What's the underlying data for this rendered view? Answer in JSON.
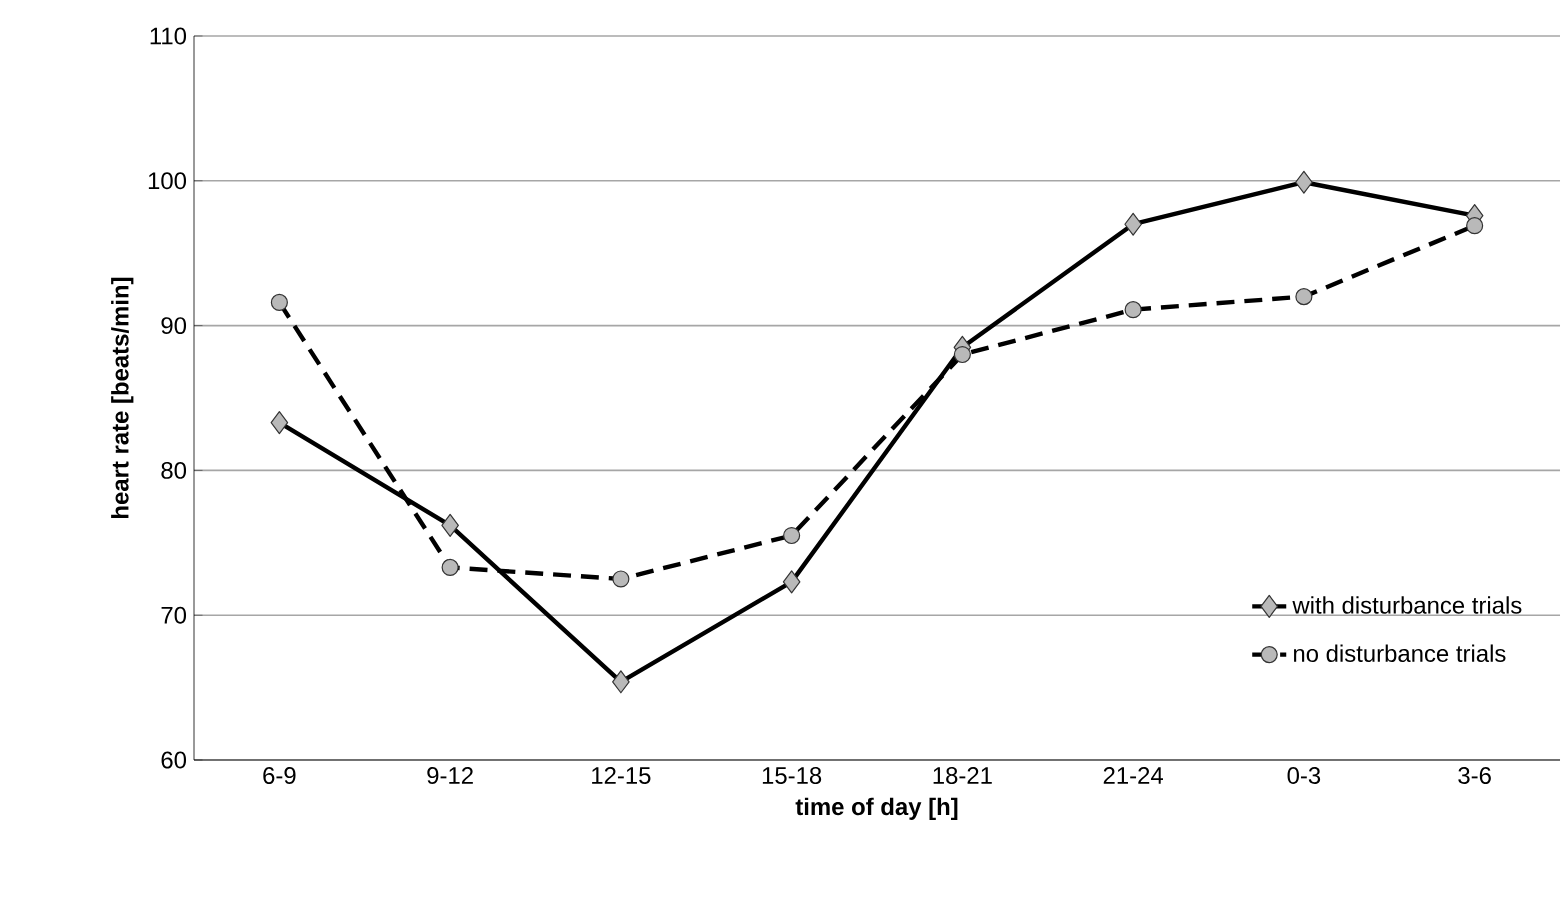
{
  "chart_data": {
    "type": "line",
    "xlabel": "time of day [h]",
    "ylabel": "heart rate [beats/min]",
    "categories": [
      "6-9",
      "9-12",
      "12-15",
      "15-18",
      "18-21",
      "21-24",
      "0-3",
      "3-6"
    ],
    "ylim": [
      60,
      110
    ],
    "yticks": [
      60,
      70,
      80,
      90,
      100,
      110
    ],
    "grid": "y",
    "legend": "bottom right",
    "series": [
      {
        "name": "with disturbance trials",
        "color": "#000000",
        "marker": "diamond",
        "line_style": "solid",
        "values": [
          83.3,
          76.2,
          65.4,
          72.3,
          88.5,
          97.0,
          99.9,
          97.6
        ]
      },
      {
        "name": "no disturbance trials",
        "color": "#000000",
        "marker": "circle",
        "line_style": "dashed",
        "values": [
          91.6,
          73.3,
          72.5,
          75.5,
          88.0,
          91.1,
          92.0,
          96.9
        ]
      }
    ]
  }
}
